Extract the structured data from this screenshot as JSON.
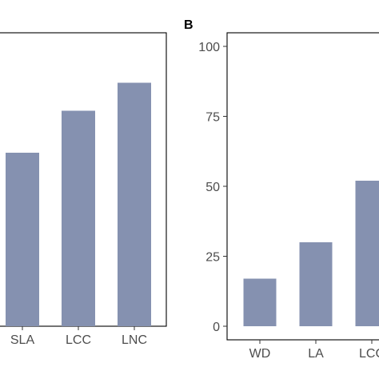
{
  "chart_data": [
    {
      "type": "bar",
      "panel": "A",
      "panel_label_visible": false,
      "categories": [
        "SLA",
        "LCC",
        "LNC"
      ],
      "values": [
        62,
        77,
        87
      ],
      "ylim": [
        0,
        100
      ],
      "grid": false,
      "bar_color": "#8591b0"
    },
    {
      "type": "bar",
      "panel": "B",
      "panel_label_visible": true,
      "categories": [
        "WD",
        "LA",
        "LCC"
      ],
      "values": [
        17,
        30,
        52
      ],
      "ylim": [
        0,
        100
      ],
      "yticks": [
        0,
        25,
        50,
        75,
        100
      ],
      "grid": false,
      "bar_color": "#8591b0"
    }
  ]
}
